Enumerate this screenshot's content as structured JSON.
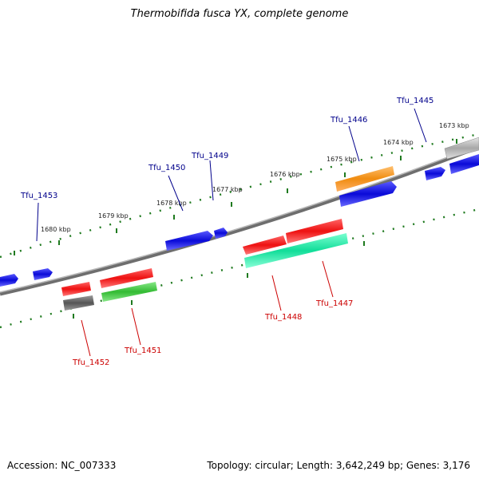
{
  "title": "Thermobifida fusca YX, complete genome",
  "footer": {
    "accession": "Accession: NC_007333",
    "topology": "Topology: circular; Length: 3,642,249 bp; Genes: 3,176"
  },
  "colors": {
    "backbone": "#7d7d7d",
    "ticks": "#1f7a1f",
    "plus_label": "#00008b",
    "minus_label": "#cc0000",
    "blue_gene": "#0a0ad8",
    "red_gene": "#ee1111",
    "orange_gene": "#f08c10",
    "green_gene": "#33bb33",
    "teal_gene": "#11dd99",
    "gray_gene": "#666666",
    "lightgray_gene": "#b5b5b5"
  },
  "kbp_labels": [
    "1673 kbp",
    "1674 kbp",
    "1675 kbp",
    "1676 kbp",
    "1677 kbp",
    "1678 kbp",
    "1679 kbp",
    "1680 kbp"
  ],
  "gene_labels": {
    "plus": [
      "Tfu_1445",
      "Tfu_1446",
      "Tfu_1449",
      "Tfu_1450",
      "Tfu_1453"
    ],
    "minus": [
      "Tfu_1447",
      "Tfu_1448",
      "Tfu_1451",
      "Tfu_1452"
    ]
  }
}
